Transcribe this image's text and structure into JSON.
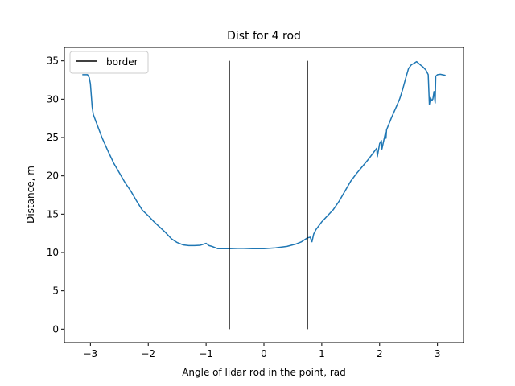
{
  "chart_data": {
    "type": "line",
    "title": "Dist for 4 rod",
    "xlabel": "Angle of lidar rod in the point, rad",
    "ylabel": "Distance, m",
    "xlim": [
      -3.45,
      3.45
    ],
    "ylim": [
      -1.75,
      36.75
    ],
    "xticks": [
      -3,
      -2,
      -1,
      0,
      1,
      2,
      3
    ],
    "yticks": [
      0,
      5,
      10,
      15,
      20,
      25,
      30,
      35
    ],
    "grid": false,
    "legend": {
      "placement": "top-left",
      "entries": [
        "border"
      ]
    },
    "series": [
      {
        "color": "#1f77b4",
        "x": [
          -3.14,
          -3.05,
          -3.02,
          -3.0,
          -2.98,
          -2.97,
          -2.95,
          -2.9,
          -2.85,
          -2.8,
          -2.7,
          -2.6,
          -2.5,
          -2.4,
          -2.3,
          -2.2,
          -2.1,
          -2.0,
          -1.9,
          -1.8,
          -1.7,
          -1.6,
          -1.5,
          -1.4,
          -1.3,
          -1.2,
          -1.1,
          -1.0,
          -0.95,
          -0.9,
          -0.8,
          -0.7,
          -0.6,
          -0.4,
          -0.2,
          0.0,
          0.2,
          0.4,
          0.55,
          0.65,
          0.75,
          0.8,
          0.83,
          0.86,
          0.9,
          1.0,
          1.1,
          1.2,
          1.3,
          1.4,
          1.5,
          1.6,
          1.7,
          1.8,
          1.9,
          1.95,
          1.96,
          2.0,
          2.03,
          2.04,
          2.1,
          2.11,
          2.12,
          2.2,
          2.3,
          2.35,
          2.4,
          2.45,
          2.5,
          2.55,
          2.6,
          2.64,
          2.7,
          2.75,
          2.8,
          2.82,
          2.84,
          2.86,
          2.88,
          2.9,
          2.92,
          2.94,
          2.96,
          2.97,
          3.0,
          3.05,
          3.14
        ],
        "y": [
          33.2,
          33.2,
          32.8,
          32.0,
          30.0,
          29.0,
          28.0,
          27.0,
          26.0,
          25.0,
          23.3,
          21.7,
          20.4,
          19.1,
          18.0,
          16.7,
          15.5,
          14.8,
          14.0,
          13.3,
          12.6,
          11.8,
          11.3,
          11.0,
          10.9,
          10.9,
          10.95,
          11.2,
          10.9,
          10.8,
          10.5,
          10.5,
          10.5,
          10.55,
          10.5,
          10.5,
          10.6,
          10.8,
          11.1,
          11.4,
          11.9,
          12.0,
          11.4,
          12.4,
          13.0,
          14.0,
          14.8,
          15.6,
          16.7,
          18.0,
          19.3,
          20.3,
          21.2,
          22.1,
          23.1,
          23.6,
          22.5,
          24.2,
          24.6,
          23.5,
          25.6,
          24.9,
          26.0,
          27.5,
          29.2,
          30.1,
          31.3,
          32.7,
          34.0,
          34.5,
          34.7,
          34.9,
          34.5,
          34.2,
          33.8,
          33.5,
          33.2,
          29.3,
          30.2,
          29.8,
          30.0,
          31.0,
          29.5,
          33.0,
          33.2,
          33.25,
          33.1
        ]
      },
      {
        "name": "border",
        "color": "#000000",
        "x": [
          -0.6,
          -0.6
        ],
        "y": [
          0,
          35
        ]
      },
      {
        "name": "border",
        "color": "#000000",
        "x": [
          0.75,
          0.75
        ],
        "y": [
          0,
          35
        ]
      }
    ]
  }
}
